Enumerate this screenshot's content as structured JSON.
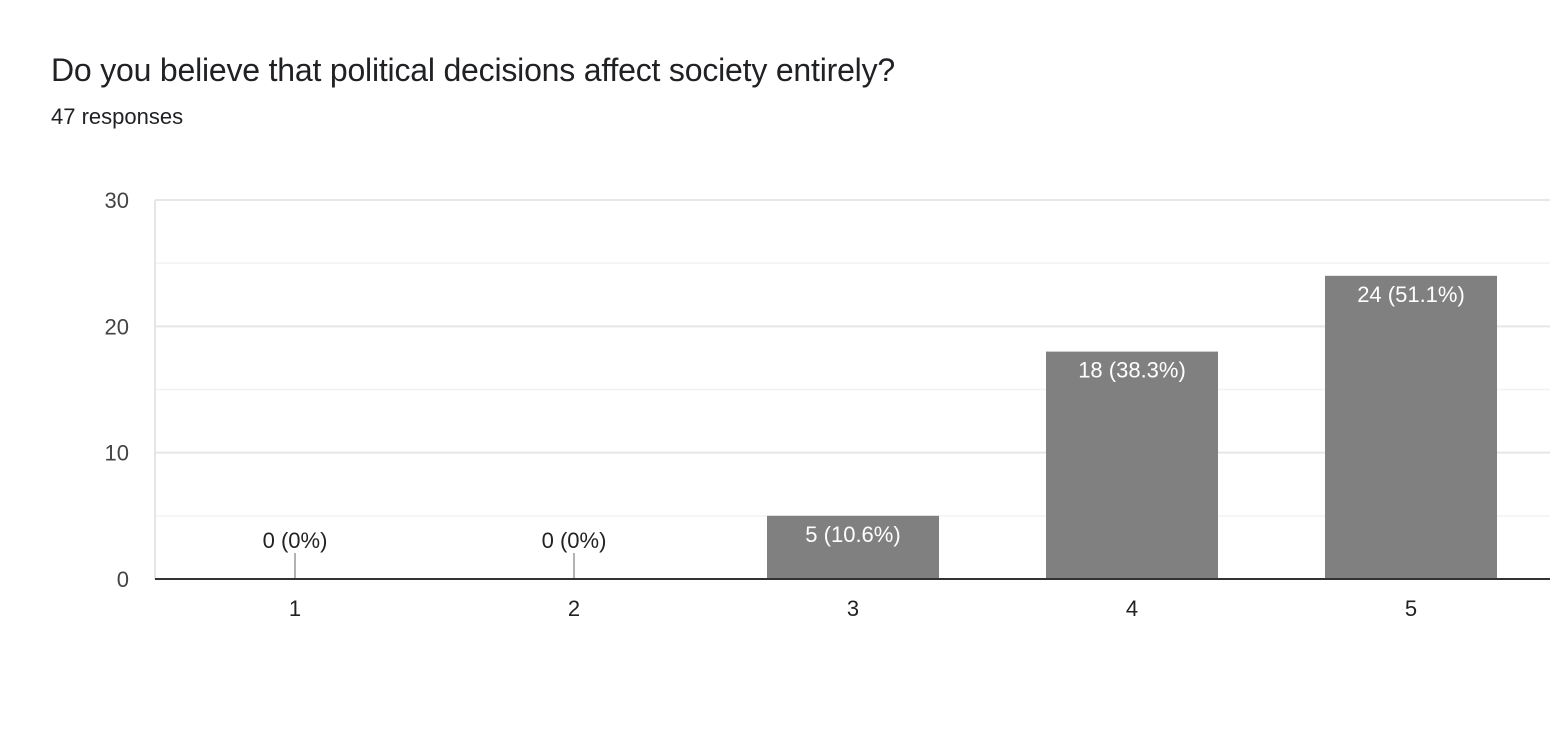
{
  "question": {
    "title": "Do you believe that political decisions affect society entirely?",
    "responses_text": "47 responses"
  },
  "colors": {
    "bar": "#808080",
    "axis": "#333333",
    "grid_major": "#e6e6e6",
    "grid_minor": "#f2f2f2"
  },
  "chart_data": {
    "type": "bar",
    "categories": [
      "1",
      "2",
      "3",
      "4",
      "5"
    ],
    "values": [
      0,
      0,
      5,
      18,
      24
    ],
    "data_labels": [
      "0 (0%)",
      "0 (0%)",
      "5 (10.6%)",
      "18 (38.3%)",
      "24 (51.1%)"
    ],
    "ylim": [
      0,
      30
    ],
    "yticks": [
      0,
      10,
      20,
      30
    ],
    "grid": true,
    "legend": "none"
  }
}
